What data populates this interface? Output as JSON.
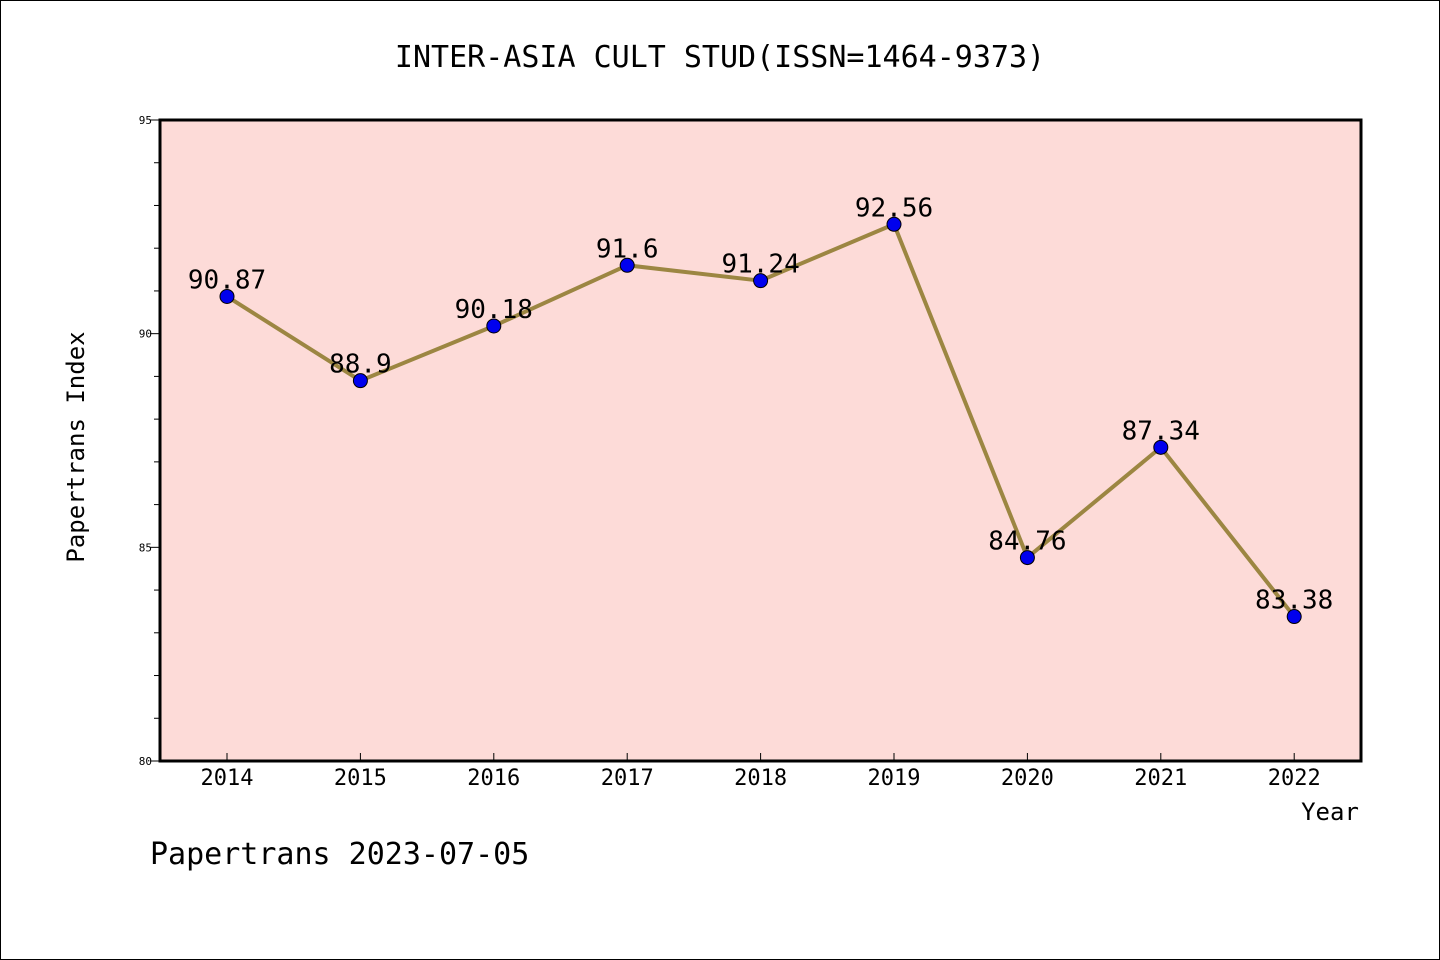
{
  "chart_data": {
    "type": "line",
    "title": "INTER-ASIA CULT STUD(ISSN=1464-9373)",
    "xlabel": "Year",
    "ylabel": "Papertrans Index",
    "categories": [
      "2014",
      "2015",
      "2016",
      "2017",
      "2018",
      "2019",
      "2020",
      "2021",
      "2022"
    ],
    "values": [
      90.87,
      88.9,
      90.18,
      91.6,
      91.24,
      92.56,
      84.76,
      87.34,
      83.38
    ],
    "data_labels": [
      "90.87",
      "88.9",
      "90.18",
      "91.6",
      "91.24",
      "92.56",
      "84.76",
      "87.34",
      "83.38"
    ],
    "ylim": [
      80,
      95
    ],
    "yticks": [
      "80",
      "85",
      "90",
      "95"
    ],
    "grid": false,
    "colors": {
      "plot_background": "#fddbd8",
      "line": "#9c8642",
      "marker": "#0000ee"
    }
  },
  "footer": "Papertrans 2023-07-05"
}
